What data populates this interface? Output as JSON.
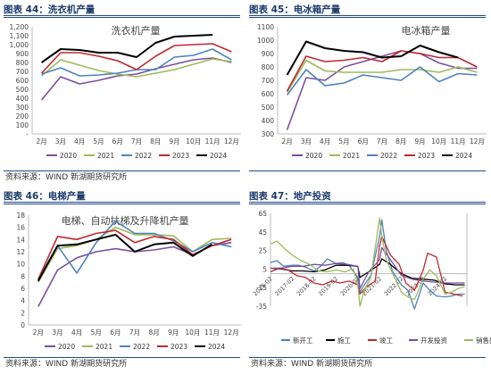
{
  "source": "资料来源：WIND 新湖期货研究所",
  "chart_data": [
    {
      "type": "line",
      "caption": "图表 44：洗衣机产量",
      "title": "洗衣机产量",
      "categories": [
        "2月",
        "3月",
        "4月",
        "5月",
        "6月",
        "7月",
        "8月",
        "9月",
        "10月",
        "11月",
        "12月"
      ],
      "ylim": [
        0,
        1200
      ],
      "yticks": [
        0,
        100,
        200,
        300,
        400,
        500,
        600,
        700,
        800,
        900,
        1000,
        1100,
        1200
      ],
      "ytick_labels": [
        "-",
        "100",
        "200",
        "300",
        "400",
        "500",
        "600",
        "700",
        "800",
        "900",
        "1,000",
        "1,100",
        "1,200"
      ],
      "legend_position": "bottom",
      "series": [
        {
          "name": "2020",
          "color": "#7b4fa0",
          "values": [
            380,
            640,
            560,
            600,
            650,
            670,
            730,
            780,
            830,
            850,
            800
          ]
        },
        {
          "name": "2021",
          "color": "#9bbb59",
          "values": [
            650,
            830,
            770,
            710,
            670,
            640,
            680,
            720,
            780,
            840,
            810
          ]
        },
        {
          "name": "2022",
          "color": "#4f81bd",
          "values": [
            670,
            740,
            650,
            660,
            680,
            720,
            720,
            860,
            880,
            950,
            830
          ]
        },
        {
          "name": "2023",
          "color": "#c0282d",
          "values": [
            680,
            910,
            910,
            870,
            820,
            720,
            870,
            990,
            1000,
            1010,
            920
          ]
        },
        {
          "name": "2024",
          "color": "#000000",
          "values": [
            800,
            950,
            940,
            910,
            910,
            860,
            1020,
            1090,
            1100,
            1110,
            null
          ]
        }
      ]
    },
    {
      "type": "line",
      "caption": "图表 45：电冰箱产量",
      "title": "电冰箱产量",
      "categories": [
        "2月",
        "3月",
        "4月",
        "5月",
        "6月",
        "7月",
        "8月",
        "9月",
        "10月",
        "11月",
        "12月"
      ],
      "ylim": [
        300,
        1100
      ],
      "yticks": [
        300,
        400,
        500,
        600,
        700,
        800,
        900,
        1000,
        1100
      ],
      "ytick_labels": [
        "300",
        "400",
        "500",
        "600",
        "700",
        "800",
        "900",
        "1000",
        "1100"
      ],
      "legend_position": "bottom",
      "series": [
        {
          "name": "2020",
          "color": "#7b4fa0",
          "values": [
            330,
            720,
            700,
            800,
            840,
            880,
            920,
            900,
            830,
            790,
            790
          ]
        },
        {
          "name": "2021",
          "color": "#9bbb59",
          "values": [
            610,
            850,
            770,
            760,
            760,
            760,
            780,
            780,
            760,
            800,
            760
          ]
        },
        {
          "name": "2022",
          "color": "#4f81bd",
          "values": [
            590,
            780,
            660,
            680,
            740,
            720,
            700,
            800,
            690,
            750,
            740
          ]
        },
        {
          "name": "2023",
          "color": "#c0282d",
          "values": [
            620,
            880,
            840,
            850,
            870,
            840,
            920,
            900,
            870,
            870,
            800
          ]
        },
        {
          "name": "2024",
          "color": "#000000",
          "values": [
            740,
            990,
            940,
            920,
            910,
            870,
            880,
            960,
            910,
            870,
            null
          ]
        }
      ]
    },
    {
      "type": "line",
      "caption": "图表 46：电梯产量",
      "title": "电梯、自动扶梯及升降机产量",
      "categories": [
        "2月",
        "3月",
        "4月",
        "5月",
        "6月",
        "7月",
        "8月",
        "9月",
        "10月",
        "11月",
        "12月"
      ],
      "ylim": [
        0,
        18
      ],
      "yticks": [
        0,
        2,
        4,
        6,
        8,
        10,
        12,
        14,
        16,
        18
      ],
      "ytick_labels": [
        "0",
        "2",
        "4",
        "6",
        "8",
        "10",
        "12",
        "14",
        "16",
        "18"
      ],
      "legend_position": "bottom",
      "series": [
        {
          "name": "2020",
          "color": "#7b4fa0",
          "values": [
            3,
            9,
            11,
            12,
            12.5,
            12,
            12.3,
            12.8,
            11.5,
            13,
            13.5
          ]
        },
        {
          "name": "2021",
          "color": "#9bbb59",
          "values": [
            7,
            12.5,
            13,
            14,
            16,
            14.8,
            14.8,
            14.6,
            12,
            14,
            14.2
          ]
        },
        {
          "name": "2022",
          "color": "#4f81bd",
          "values": [
            7.5,
            13,
            8.5,
            13.5,
            17,
            15,
            15,
            13.8,
            12,
            13.5,
            12.8
          ]
        },
        {
          "name": "2023",
          "color": "#c0282d",
          "values": [
            7.5,
            14.5,
            14,
            15,
            15.5,
            13.5,
            14.5,
            14,
            11.5,
            13,
            14
          ]
        },
        {
          "name": "2024",
          "color": "#000000",
          "values": [
            7.2,
            13,
            13.2,
            14,
            14.8,
            12,
            13.2,
            13.5,
            11.3,
            13.2,
            null
          ]
        }
      ]
    },
    {
      "type": "line",
      "caption": "图表 47：地产投资",
      "ylim": [
        -35,
        65
      ],
      "yticks": [
        -35,
        -15,
        5,
        25,
        45,
        65
      ],
      "ytick_labels": [
        "-35",
        "-15",
        "5",
        "25",
        "45",
        "65"
      ],
      "xtick_labels": [
        "2016-02",
        "2017-02",
        "2018-02",
        "2019-02",
        "2020-02",
        "2021-02",
        "2022-02",
        "2023-02",
        "2024-02"
      ],
      "x_range": [
        2016.0,
        2025.0
      ],
      "legend_position": "bottom",
      "series": [
        {
          "name": "新开工",
          "color": "#4f81bd",
          "x": [
            2016.0,
            2016.3,
            2016.6,
            2017.0,
            2017.3,
            2017.6,
            2018.0,
            2018.3,
            2018.6,
            2019.0,
            2019.3,
            2019.6,
            2020.0,
            2020.1,
            2020.3,
            2020.6,
            2021.0,
            2021.1,
            2021.3,
            2021.6,
            2022.0,
            2022.3,
            2022.6,
            2023.0,
            2023.3,
            2023.6,
            2024.0,
            2024.3,
            2024.6,
            2024.9
          ],
          "y": [
            12,
            14,
            8,
            9,
            9,
            7,
            3,
            8,
            16,
            11,
            12,
            9,
            -4,
            -20,
            -12,
            -2,
            40,
            58,
            25,
            2,
            -12,
            -18,
            -38,
            -10,
            -18,
            -24,
            -25,
            -24,
            -22,
            -22
          ]
        },
        {
          "name": "施工",
          "color": "#000000",
          "x": [
            2016.0,
            2016.5,
            2017.0,
            2017.5,
            2018.0,
            2018.5,
            2019.0,
            2019.5,
            2020.0,
            2020.1,
            2020.5,
            2021.0,
            2021.1,
            2021.5,
            2022.0,
            2022.5,
            2023.0,
            2023.5,
            2024.0,
            2024.5,
            2024.9
          ],
          "y": [
            6,
            5,
            3,
            3,
            2,
            4,
            9,
            9,
            8,
            -4,
            2,
            10,
            16,
            10,
            0,
            -5,
            -6,
            -7,
            -11,
            -12,
            -12
          ]
        },
        {
          "name": "竣工",
          "color": "#c0282d",
          "x": [
            2016.0,
            2016.4,
            2016.8,
            2017.2,
            2017.6,
            2018.0,
            2018.4,
            2018.8,
            2019.2,
            2019.6,
            2020.0,
            2020.1,
            2020.4,
            2020.8,
            2021.0,
            2021.1,
            2021.5,
            2021.9,
            2022.2,
            2022.6,
            2023.0,
            2023.2,
            2023.6,
            2024.0,
            2024.4,
            2024.8
          ],
          "y": [
            2,
            6,
            4,
            -2,
            -4,
            -10,
            -12,
            -8,
            -10,
            -8,
            -12,
            -22,
            -14,
            -8,
            30,
            40,
            20,
            10,
            -10,
            -18,
            4,
            22,
            18,
            -20,
            -22,
            -24
          ]
        },
        {
          "name": "开发投资",
          "color": "#7b4fa0",
          "x": [
            2016.0,
            2016.5,
            2017.0,
            2017.5,
            2018.0,
            2018.5,
            2019.0,
            2019.5,
            2020.0,
            2020.1,
            2020.5,
            2021.0,
            2021.1,
            2021.5,
            2022.0,
            2022.5,
            2023.0,
            2023.5,
            2024.0,
            2024.5,
            2024.9
          ],
          "y": [
            6,
            6,
            8,
            8,
            10,
            9,
            11,
            10,
            8,
            -16,
            2,
            15,
            28,
            15,
            -2,
            -6,
            -8,
            -9,
            -10,
            -10,
            -10
          ]
        },
        {
          "name": "销售(右)",
          "color": "#9bbb59",
          "x": [
            2016.0,
            2016.3,
            2016.6,
            2017.0,
            2017.4,
            2017.8,
            2018.2,
            2018.6,
            2019.0,
            2019.4,
            2019.8,
            2020.0,
            2020.1,
            2020.3,
            2020.6,
            2021.0,
            2021.1,
            2021.3,
            2021.6,
            2022.0,
            2022.3,
            2022.6,
            2023.0,
            2023.3,
            2023.6,
            2024.0,
            2024.3,
            2024.6,
            2024.9
          ],
          "y": [
            32,
            35,
            28,
            20,
            14,
            10,
            3,
            2,
            4,
            2,
            5,
            -12,
            -35,
            -18,
            -4,
            60,
            40,
            15,
            0,
            -20,
            -25,
            -28,
            -6,
            4,
            -2,
            -22,
            -20,
            -16,
            -14
          ]
        }
      ]
    }
  ]
}
